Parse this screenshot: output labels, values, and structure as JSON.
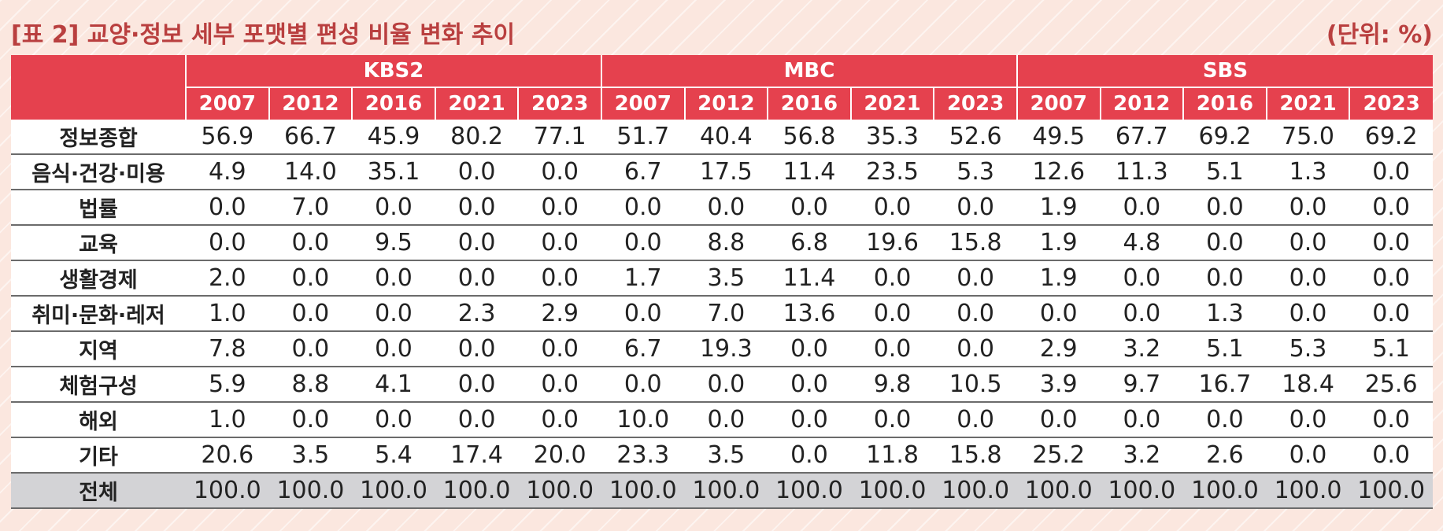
{
  "title": "[표 2] 교양·정보 세부 포맷별 편성 비율 변화 추이",
  "unit": "(단위: %)",
  "broadcasters": [
    "KBS2",
    "MBC",
    "SBS"
  ],
  "years": [
    "2007",
    "2012",
    "2016",
    "2021",
    "2023"
  ],
  "rows": [
    {
      "label": "정보종합",
      "values": [
        "56.9",
        "66.7",
        "45.9",
        "80.2",
        "77.1",
        "51.7",
        "40.4",
        "56.8",
        "35.3",
        "52.6",
        "49.5",
        "67.7",
        "69.2",
        "75.0",
        "69.2"
      ]
    },
    {
      "label": "음식·건강·미용",
      "values": [
        "4.9",
        "14.0",
        "35.1",
        "0.0",
        "0.0",
        "6.7",
        "17.5",
        "11.4",
        "23.5",
        "5.3",
        "12.6",
        "11.3",
        "5.1",
        "1.3",
        "0.0"
      ]
    },
    {
      "label": "법률",
      "values": [
        "0.0",
        "7.0",
        "0.0",
        "0.0",
        "0.0",
        "0.0",
        "0.0",
        "0.0",
        "0.0",
        "0.0",
        "1.9",
        "0.0",
        "0.0",
        "0.0",
        "0.0"
      ]
    },
    {
      "label": "교육",
      "values": [
        "0.0",
        "0.0",
        "9.5",
        "0.0",
        "0.0",
        "0.0",
        "8.8",
        "6.8",
        "19.6",
        "15.8",
        "1.9",
        "4.8",
        "0.0",
        "0.0",
        "0.0"
      ]
    },
    {
      "label": "생활경제",
      "values": [
        "2.0",
        "0.0",
        "0.0",
        "0.0",
        "0.0",
        "1.7",
        "3.5",
        "11.4",
        "0.0",
        "0.0",
        "1.9",
        "0.0",
        "0.0",
        "0.0",
        "0.0"
      ]
    },
    {
      "label": "취미·문화·레저",
      "values": [
        "1.0",
        "0.0",
        "0.0",
        "2.3",
        "2.9",
        "0.0",
        "7.0",
        "13.6",
        "0.0",
        "0.0",
        "0.0",
        "0.0",
        "1.3",
        "0.0",
        "0.0"
      ]
    },
    {
      "label": "지역",
      "values": [
        "7.8",
        "0.0",
        "0.0",
        "0.0",
        "0.0",
        "6.7",
        "19.3",
        "0.0",
        "0.0",
        "0.0",
        "2.9",
        "3.2",
        "5.1",
        "5.3",
        "5.1"
      ]
    },
    {
      "label": "체험구성",
      "values": [
        "5.9",
        "8.8",
        "4.1",
        "0.0",
        "0.0",
        "0.0",
        "0.0",
        "0.0",
        "9.8",
        "10.5",
        "3.9",
        "9.7",
        "16.7",
        "18.4",
        "25.6"
      ]
    },
    {
      "label": "해외",
      "values": [
        "1.0",
        "0.0",
        "0.0",
        "0.0",
        "0.0",
        "10.0",
        "0.0",
        "0.0",
        "0.0",
        "0.0",
        "0.0",
        "0.0",
        "0.0",
        "0.0",
        "0.0"
      ]
    },
    {
      "label": "기타",
      "values": [
        "20.6",
        "3.5",
        "5.4",
        "17.4",
        "20.0",
        "23.3",
        "3.5",
        "0.0",
        "11.8",
        "15.8",
        "25.2",
        "3.2",
        "2.6",
        "0.0",
        "0.0"
      ]
    },
    {
      "label": "전체",
      "values": [
        "100.0",
        "100.0",
        "100.0",
        "100.0",
        "100.0",
        "100.0",
        "100.0",
        "100.0",
        "100.0",
        "100.0",
        "100.0",
        "100.0",
        "100.0",
        "100.0",
        "100.0"
      ],
      "total": true
    }
  ],
  "colors": {
    "header_bg": "#e5414e",
    "title": "#b93f3f",
    "total_bg": "#d3d3d6",
    "page_bg": "#fbe7df"
  }
}
